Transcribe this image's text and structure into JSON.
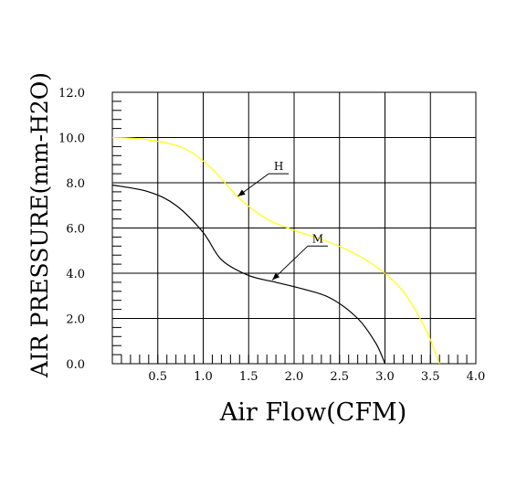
{
  "chart_data": {
    "type": "line",
    "xlabel": "Air Flow(CFM)",
    "ylabel": "AIR PRESSURE(mm-H2O)",
    "xlim": [
      0,
      4.0
    ],
    "ylim": [
      0,
      12.0
    ],
    "grid": true,
    "x_tick_labels": [
      "0.5",
      "1.0",
      "1.5",
      "2.0",
      "2.5",
      "3.0",
      "3.5",
      "4.0"
    ],
    "y_tick_labels": [
      "0.0",
      "2.0",
      "4.0",
      "6.0",
      "8.0",
      "10.0",
      "12.0"
    ],
    "series": [
      {
        "name": "H",
        "color": "#ffff00",
        "x": [
          0.0,
          0.4,
          0.8,
          1.1,
          1.4,
          1.7,
          2.0,
          2.3,
          2.6,
          2.9,
          3.2,
          3.45,
          3.6
        ],
        "y": [
          10.0,
          9.9,
          9.5,
          8.6,
          7.3,
          6.4,
          5.9,
          5.5,
          5.0,
          4.3,
          3.2,
          1.5,
          0.0
        ]
      },
      {
        "name": "M",
        "color": "#000000",
        "x": [
          0.0,
          0.4,
          0.7,
          1.0,
          1.2,
          1.5,
          1.8,
          2.1,
          2.4,
          2.7,
          2.9,
          3.0
        ],
        "y": [
          7.9,
          7.6,
          7.0,
          5.8,
          4.6,
          3.9,
          3.6,
          3.3,
          2.9,
          2.0,
          0.9,
          0.0
        ]
      }
    ]
  }
}
